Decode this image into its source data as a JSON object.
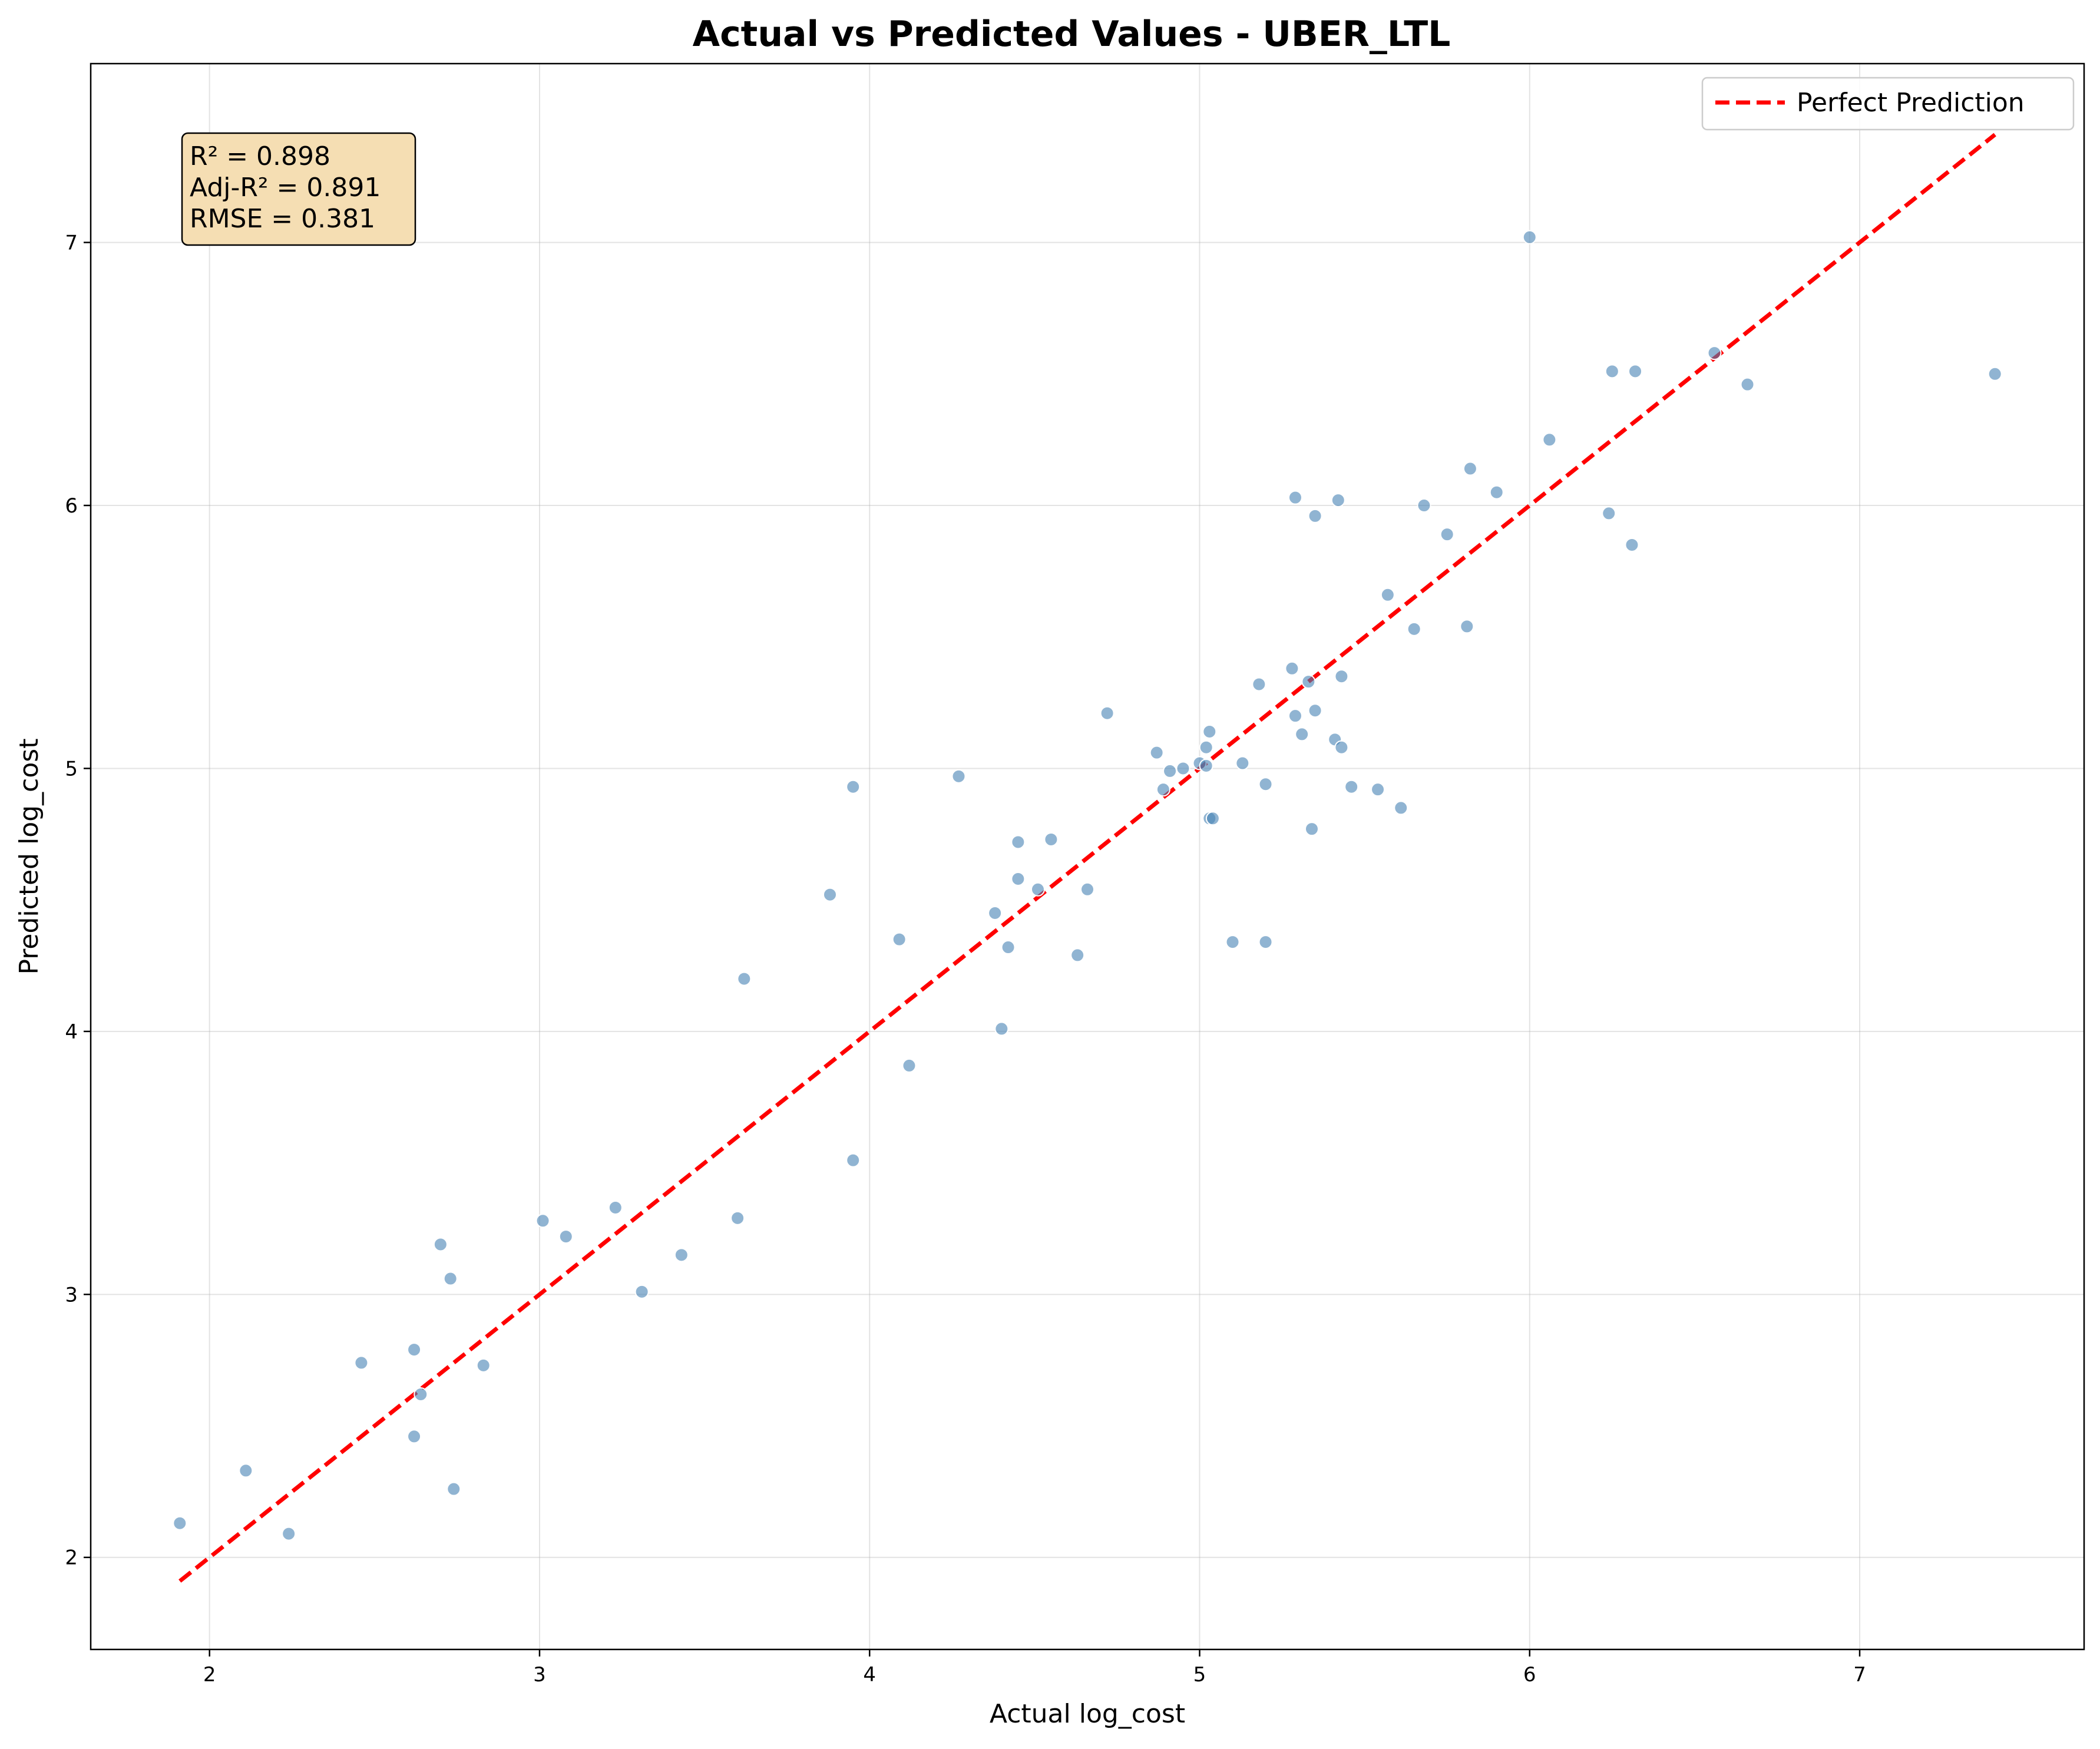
{
  "chart_data": {
    "type": "scatter",
    "title": "Actual vs Predicted Values - UBER_LTL",
    "xlabel": "Actual log_cost",
    "ylabel": "Predicted log_cost",
    "xlim": [
      1.64,
      7.68
    ],
    "ylim": [
      1.65,
      7.68
    ],
    "xticks": [
      2,
      3,
      4,
      5,
      6,
      7
    ],
    "yticks": [
      2,
      3,
      4,
      5,
      6,
      7
    ],
    "grid": true,
    "legend": {
      "placement": "top-right",
      "entries": [
        "Perfect Prediction"
      ]
    },
    "colors": {
      "points": "#4682b4",
      "reference_line": "#ff0000",
      "stats_box": "#f5deb3"
    },
    "stats_box": {
      "lines": [
        "R² = 0.898",
        "Adj-R² = 0.891",
        "RMSE = 0.381"
      ]
    },
    "reference_line": {
      "name": "Perfect Prediction",
      "x": [
        1.91,
        7.41
      ],
      "y": [
        1.91,
        7.41
      ]
    },
    "series": [
      {
        "points": [
          [
            1.91,
            2.13
          ],
          [
            2.11,
            2.33
          ],
          [
            2.24,
            2.09
          ],
          [
            2.46,
            2.74
          ],
          [
            2.62,
            2.79
          ],
          [
            2.64,
            2.62
          ],
          [
            2.62,
            2.46
          ],
          [
            2.7,
            3.19
          ],
          [
            2.73,
            3.06
          ],
          [
            2.74,
            2.26
          ],
          [
            2.83,
            2.73
          ],
          [
            3.01,
            3.28
          ],
          [
            3.08,
            3.22
          ],
          [
            3.23,
            3.33
          ],
          [
            3.31,
            3.01
          ],
          [
            3.43,
            3.15
          ],
          [
            3.6,
            3.29
          ],
          [
            3.62,
            4.2
          ],
          [
            3.88,
            4.52
          ],
          [
            3.95,
            4.93
          ],
          [
            3.95,
            3.51
          ],
          [
            4.09,
            4.35
          ],
          [
            4.12,
            3.87
          ],
          [
            4.27,
            4.97
          ],
          [
            4.38,
            4.45
          ],
          [
            4.4,
            4.01
          ],
          [
            4.42,
            4.32
          ],
          [
            4.45,
            4.72
          ],
          [
            4.45,
            4.58
          ],
          [
            4.51,
            4.54
          ],
          [
            4.55,
            4.73
          ],
          [
            4.63,
            4.29
          ],
          [
            4.66,
            4.54
          ],
          [
            4.72,
            5.21
          ],
          [
            4.87,
            5.06
          ],
          [
            4.89,
            4.92
          ],
          [
            4.91,
            4.99
          ],
          [
            4.95,
            5.0
          ],
          [
            5.0,
            5.02
          ],
          [
            5.02,
            5.08
          ],
          [
            5.03,
            5.14
          ],
          [
            5.02,
            5.01
          ],
          [
            5.03,
            4.81
          ],
          [
            5.04,
            4.81
          ],
          [
            5.1,
            4.34
          ],
          [
            5.13,
            5.02
          ],
          [
            5.18,
            5.32
          ],
          [
            5.2,
            4.94
          ],
          [
            5.2,
            4.34
          ],
          [
            5.28,
            5.38
          ],
          [
            5.29,
            5.2
          ],
          [
            5.29,
            6.03
          ],
          [
            5.31,
            5.13
          ],
          [
            5.33,
            5.33
          ],
          [
            5.34,
            4.77
          ],
          [
            5.35,
            5.22
          ],
          [
            5.35,
            5.96
          ],
          [
            5.41,
            5.11
          ],
          [
            5.42,
            6.02
          ],
          [
            5.43,
            5.35
          ],
          [
            5.43,
            5.08
          ],
          [
            5.46,
            4.93
          ],
          [
            5.54,
            4.92
          ],
          [
            5.57,
            5.66
          ],
          [
            5.61,
            4.85
          ],
          [
            5.65,
            5.53
          ],
          [
            5.68,
            6.0
          ],
          [
            5.75,
            5.89
          ],
          [
            5.81,
            5.54
          ],
          [
            5.82,
            6.14
          ],
          [
            5.9,
            6.05
          ],
          [
            6.0,
            7.02
          ],
          [
            6.06,
            6.25
          ],
          [
            6.24,
            5.97
          ],
          [
            6.25,
            6.51
          ],
          [
            6.31,
            5.85
          ],
          [
            6.32,
            6.51
          ],
          [
            6.56,
            6.58
          ],
          [
            6.66,
            6.46
          ],
          [
            7.41,
            6.5
          ]
        ]
      }
    ]
  }
}
